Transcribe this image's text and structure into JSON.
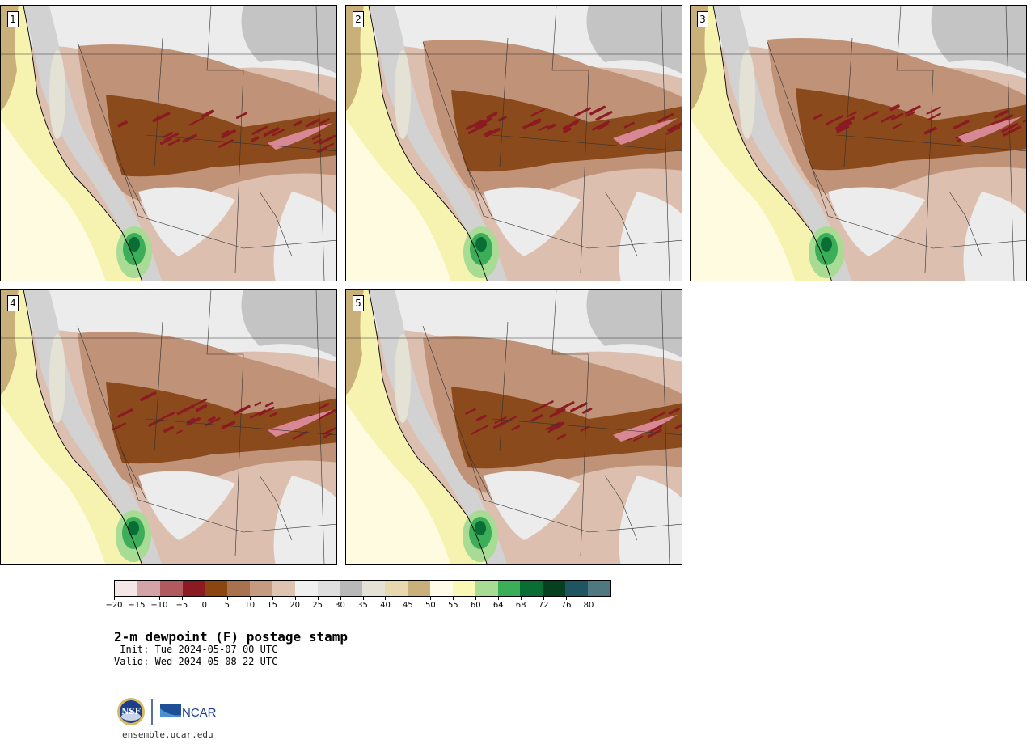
{
  "panels": [
    {
      "label": "1",
      "variant": 0
    },
    {
      "label": "2",
      "variant": 1
    },
    {
      "label": "3",
      "variant": 2
    },
    {
      "label": "4",
      "variant": 3
    },
    {
      "label": "5",
      "variant": 4
    }
  ],
  "colorbar": {
    "colors": [
      "#f5e6e8",
      "#d4a3a8",
      "#b05a60",
      "#8b1a22",
      "#8b4510",
      "#a8724e",
      "#c49a80",
      "#e0c4b2",
      "#f0f0f0",
      "#dedede",
      "#b8b8b8",
      "#e4e2d4",
      "#e8d8b0",
      "#c9b07a",
      "#fffbe8",
      "#faf8b4",
      "#a8dc94",
      "#3cae5a",
      "#0a6e34",
      "#07401f",
      "#1e5560",
      "#4f7880"
    ],
    "ticks": [
      "−20",
      "−15",
      "−10",
      "−5",
      "0",
      "5",
      "10",
      "15",
      "20",
      "25",
      "30",
      "35",
      "40",
      "45",
      "50",
      "55",
      "60",
      "64",
      "68",
      "72",
      "76",
      "80"
    ]
  },
  "title": "2-m dewpoint (F) postage stamp",
  "init_line": " Init: Tue 2024-05-07 00 UTC",
  "valid_line": "Valid: Wed 2024-05-08 22 UTC",
  "logos": {
    "nsf_text": "NSF",
    "ncar_text": "NCAR"
  },
  "website": "ensemble.ucar.edu",
  "map_colors": {
    "ocean_pale": "#fffbe0",
    "ocean_yellow": "#f6f2b0",
    "coast_tan": "#c9b07a",
    "canada_gray": "#c4c4c4",
    "light_gray": "#ececec",
    "mid_gray": "#d2d2d2",
    "light_brown": "#dcbfae",
    "mid_brown": "#c09378",
    "dark_brown": "#8b4a1c",
    "red": "#8b1a22",
    "pink": "#d88894",
    "green_light": "#a8dc94",
    "green_mid": "#3cae5a",
    "green_dark": "#0a6e34"
  }
}
